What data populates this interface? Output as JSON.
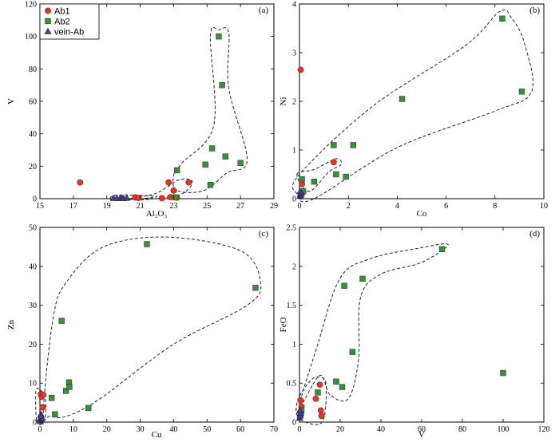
{
  "legend": {
    "entries": [
      {
        "label": "Ab1",
        "marker": "circle",
        "color": "#e8332a"
      },
      {
        "label": "Ab2",
        "marker": "square",
        "color": "#3a8f3a"
      },
      {
        "label": "vein-Ab",
        "marker": "triangle",
        "color": "#4a3f8c"
      }
    ]
  },
  "chart_data": [
    {
      "id": "a",
      "type": "scatter",
      "panel_label": "(a)",
      "xlabel": "Al₂O₃",
      "ylabel": "V",
      "xlim": [
        15,
        29
      ],
      "ylim": [
        0,
        120
      ],
      "xticks": [
        15,
        17,
        19,
        21,
        23,
        25,
        27,
        29
      ],
      "yticks": [
        0,
        20,
        40,
        60,
        80,
        100,
        120
      ],
      "series": [
        {
          "name": "Ab1",
          "points": [
            [
              17.4,
              10
            ],
            [
              20.7,
              0.8
            ],
            [
              20.9,
              0.5
            ],
            [
              22.3,
              0.3
            ],
            [
              22.7,
              10
            ],
            [
              22.8,
              1
            ],
            [
              23.0,
              5
            ],
            [
              23.2,
              0.6
            ],
            [
              23.9,
              10
            ]
          ]
        },
        {
          "name": "Ab2",
          "points": [
            [
              23.1,
              0.8
            ],
            [
              23.2,
              17.5
            ],
            [
              24.9,
              21
            ],
            [
              25.2,
              8.5
            ],
            [
              25.3,
              31
            ],
            [
              25.7,
              100
            ],
            [
              25.9,
              70
            ],
            [
              26.1,
              26
            ],
            [
              27.0,
              22
            ]
          ]
        },
        {
          "name": "vein-Ab",
          "points": [
            [
              19.4,
              0.3
            ],
            [
              19.6,
              0.3
            ],
            [
              19.8,
              0.3
            ],
            [
              19.9,
              0.3
            ],
            [
              20.0,
              0.2
            ],
            [
              20.2,
              0.4
            ]
          ]
        }
      ],
      "envelopes": [
        [
          [
            19.2,
            0.2
          ],
          [
            19.6,
            2.2
          ],
          [
            21.0,
            2.0
          ],
          [
            22.0,
            1.2
          ],
          [
            21.0,
            0.0
          ],
          [
            19.6,
            -0.8
          ],
          [
            19.2,
            0.2
          ]
        ],
        [
          [
            20.6,
            0.3
          ],
          [
            22.0,
            3.5
          ],
          [
            23.3,
            11.5
          ],
          [
            24.1,
            11.0
          ],
          [
            23.8,
            5.0
          ],
          [
            23.0,
            1.5
          ],
          [
            21.0,
            -0.8
          ],
          [
            20.6,
            0.3
          ]
        ],
        [
          [
            23.2,
            5.0
          ],
          [
            23.0,
            14.0
          ],
          [
            23.5,
            22.0
          ],
          [
            25.4,
            45.0
          ],
          [
            25.2,
            100.0
          ],
          [
            25.7,
            104.0
          ],
          [
            26.3,
            102.0
          ],
          [
            26.3,
            68.0
          ],
          [
            27.4,
            24.0
          ],
          [
            26.2,
            16.0
          ],
          [
            24.8,
            5.0
          ],
          [
            23.2,
            5.0
          ]
        ]
      ]
    },
    {
      "id": "b",
      "type": "scatter",
      "panel_label": "(b)",
      "xlabel": "Co",
      "ylabel": "Ni",
      "xlim": [
        0,
        10
      ],
      "ylim": [
        0,
        4
      ],
      "xticks": [
        0,
        2,
        4,
        6,
        8,
        10
      ],
      "yticks": [
        0,
        1,
        2,
        3,
        4
      ],
      "series": [
        {
          "name": "Ab1",
          "points": [
            [
              0.05,
              2.65
            ],
            [
              0.1,
              0.3
            ],
            [
              0.05,
              0.05
            ],
            [
              0.15,
              0.15
            ],
            [
              1.4,
              0.75
            ]
          ]
        },
        {
          "name": "Ab2",
          "points": [
            [
              0.1,
              0.4
            ],
            [
              0.15,
              0.15
            ],
            [
              0.6,
              0.35
            ],
            [
              1.4,
              1.1
            ],
            [
              1.5,
              0.5
            ],
            [
              1.9,
              0.45
            ],
            [
              2.2,
              1.1
            ],
            [
              4.2,
              2.05
            ],
            [
              8.3,
              3.7
            ],
            [
              9.1,
              2.2
            ]
          ]
        },
        {
          "name": "vein-Ab",
          "points": [
            [
              0.02,
              0.05
            ],
            [
              0.04,
              0.1
            ],
            [
              0.06,
              0.08
            ],
            [
              0.08,
              0.12
            ],
            [
              0.03,
              0.15
            ]
          ]
        }
      ],
      "envelopes": [
        [
          [
            -0.1,
            0.5
          ],
          [
            0.6,
            0.6
          ],
          [
            1.5,
            0.82
          ],
          [
            1.7,
            0.7
          ],
          [
            1.2,
            0.55
          ],
          [
            0.4,
            0.15
          ],
          [
            -0.1,
            0.5
          ]
        ],
        [
          [
            -0.1,
            0.1
          ],
          [
            0.0,
            0.5
          ],
          [
            3.0,
            1.9
          ],
          [
            6.8,
            3.15
          ],
          [
            8.2,
            3.85
          ],
          [
            8.7,
            3.7
          ],
          [
            9.2,
            3.2
          ],
          [
            9.5,
            2.2
          ],
          [
            8.0,
            1.8
          ],
          [
            4.0,
            1.05
          ],
          [
            0.6,
            0.0
          ],
          [
            -0.1,
            0.1
          ]
        ]
      ]
    },
    {
      "id": "c",
      "type": "scatter",
      "panel_label": "(c)",
      "xlabel": "Cu",
      "ylabel": "Zn",
      "xlim": [
        0,
        70
      ],
      "ylim": [
        0,
        50
      ],
      "xticks": [
        0,
        10,
        20,
        30,
        40,
        50,
        60,
        70
      ],
      "yticks": [
        0,
        10,
        20,
        30,
        40,
        50
      ],
      "series": [
        {
          "name": "Ab1",
          "points": [
            [
              0.3,
              7.2
            ],
            [
              0.5,
              6.5
            ],
            [
              0.8,
              3.8
            ],
            [
              0.3,
              1.2
            ],
            [
              0.5,
              0.5
            ],
            [
              1.0,
              7.0
            ]
          ]
        },
        {
          "name": "Ab2",
          "points": [
            [
              3.5,
              6.2
            ],
            [
              4.5,
              2.0
            ],
            [
              6.5,
              26.0
            ],
            [
              7.8,
              8.0
            ],
            [
              8.7,
              10.2
            ],
            [
              8.8,
              9.0
            ],
            [
              14.5,
              3.6
            ],
            [
              32.0,
              45.7
            ],
            [
              64.5,
              34.5
            ]
          ]
        },
        {
          "name": "vein-Ab",
          "points": [
            [
              0.1,
              0.5
            ],
            [
              0.2,
              1.0
            ],
            [
              0.3,
              2.0
            ],
            [
              0.1,
              0.2
            ],
            [
              0.4,
              1.5
            ]
          ]
        }
      ],
      "envelopes": [
        [
          [
            -1.0,
            0.5
          ],
          [
            -1.2,
            8.0
          ],
          [
            0.0,
            8.2
          ],
          [
            1.6,
            6.5
          ],
          [
            1.6,
            1.5
          ],
          [
            0.6,
            -0.5
          ],
          [
            -1.0,
            0.5
          ]
        ],
        [
          [
            1.0,
            2.5
          ],
          [
            4.0,
            27.0
          ],
          [
            8.0,
            36.0
          ],
          [
            19.0,
            45.0
          ],
          [
            38.0,
            47.5
          ],
          [
            60.0,
            44.0
          ],
          [
            66.0,
            36.0
          ],
          [
            62.0,
            30.0
          ],
          [
            40.0,
            20.0
          ],
          [
            18.0,
            6.0
          ],
          [
            8.0,
            1.5
          ],
          [
            3.0,
            1.5
          ],
          [
            1.0,
            2.5
          ]
        ]
      ]
    },
    {
      "id": "d",
      "type": "scatter",
      "panel_label": "(d)",
      "xlabel": "V",
      "ylabel": "FeO",
      "xlim": [
        0,
        120
      ],
      "ylim": [
        0,
        2.5
      ],
      "xticks": [
        0,
        20,
        40,
        60,
        80,
        100,
        120
      ],
      "yticks": [
        0,
        0.5,
        1,
        1.5,
        2,
        2.5
      ],
      "series": [
        {
          "name": "Ab1",
          "points": [
            [
              0.5,
              0.28
            ],
            [
              0.8,
              0.12
            ],
            [
              1.0,
              0.2
            ],
            [
              8.0,
              0.3
            ],
            [
              10.0,
              0.48
            ],
            [
              10.5,
              0.15
            ],
            [
              10.8,
              0.08
            ]
          ]
        },
        {
          "name": "Ab2",
          "points": [
            [
              1.0,
              0.15
            ],
            [
              0.5,
              0.1
            ],
            [
              9.0,
              0.38
            ],
            [
              18.0,
              0.52
            ],
            [
              21.0,
              0.45
            ],
            [
              22.0,
              1.75
            ],
            [
              26.0,
              0.9
            ],
            [
              31.0,
              1.84
            ],
            [
              70.0,
              2.22
            ],
            [
              100.0,
              0.63
            ]
          ]
        },
        {
          "name": "vein-Ab",
          "points": [
            [
              0.1,
              0.05
            ],
            [
              0.3,
              0.1
            ],
            [
              0.4,
              0.08
            ],
            [
              0.6,
              0.12
            ],
            [
              0.2,
              0.15
            ]
          ]
        }
      ],
      "envelopes": [
        [
          [
            -1.0,
            0.08
          ],
          [
            -0.5,
            0.3
          ],
          [
            5.0,
            0.52
          ],
          [
            9.0,
            0.58
          ],
          [
            13.0,
            0.5
          ],
          [
            12.0,
            0.05
          ],
          [
            7.0,
            -0.03
          ],
          [
            -1.0,
            0.08
          ]
        ],
        [
          [
            0.0,
            0.2
          ],
          [
            9.0,
            1.0
          ],
          [
            20.0,
            1.85
          ],
          [
            35.0,
            2.1
          ],
          [
            58.0,
            2.23
          ],
          [
            73.0,
            2.28
          ],
          [
            60.0,
            2.05
          ],
          [
            40.0,
            1.9
          ],
          [
            30.0,
            1.6
          ],
          [
            29.0,
            0.8
          ],
          [
            24.0,
            0.3
          ],
          [
            15.0,
            0.35
          ],
          [
            10.0,
            0.6
          ],
          [
            0.0,
            0.2
          ]
        ]
      ]
    }
  ]
}
